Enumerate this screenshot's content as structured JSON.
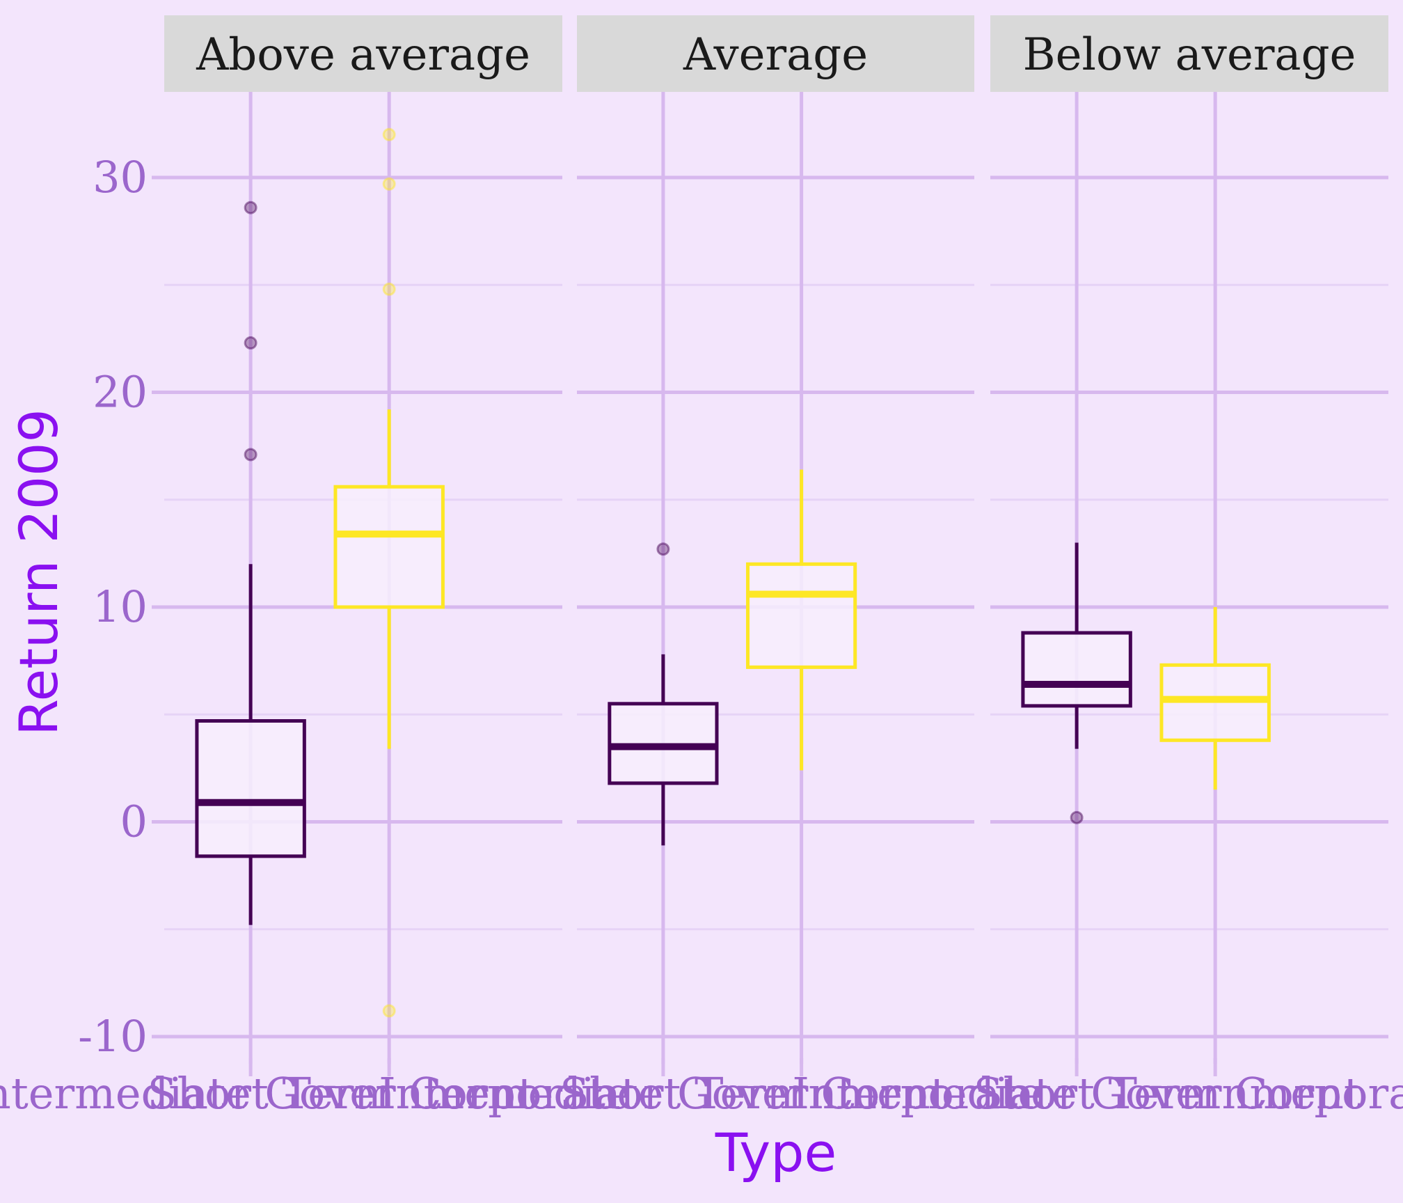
{
  "chart_data": {
    "type": "boxplot",
    "facet_by": "rating",
    "facets": [
      "Above average",
      "Average",
      "Below average"
    ],
    "categories": [
      "Intermediate Government",
      "Short Term Corporate"
    ],
    "xlabel": "Type",
    "ylabel": "Return 2009",
    "ylim": [
      -10.5,
      33
    ],
    "yticks": [
      -10,
      0,
      10,
      20,
      30
    ],
    "grid": true,
    "legend": "none",
    "colors": {
      "Intermediate Government": "#440154",
      "Short Term Corporate": "#fde725",
      "background": "#f3e5fc",
      "grid_major": "#d7b8ee",
      "grid_minor": "#e6d3f6",
      "strip_bg": "#d9d9d9",
      "box_fill": "#f7effd",
      "tick_label": "#9b66cc",
      "axis_title": "#8a10f0"
    },
    "boxes": [
      {
        "facet": "Above average",
        "category": "Intermediate Government",
        "lower_whisker": -4.8,
        "q1": -1.6,
        "median": 0.9,
        "q3": 4.7,
        "upper_whisker": 12.0,
        "outliers": [
          17.1,
          22.3,
          28.6
        ]
      },
      {
        "facet": "Above average",
        "category": "Short Term Corporate",
        "lower_whisker": 3.4,
        "q1": 10.0,
        "median": 13.4,
        "q3": 15.6,
        "upper_whisker": 19.2,
        "outliers": [
          -8.8,
          24.8,
          29.7,
          32.0
        ]
      },
      {
        "facet": "Average",
        "category": "Intermediate Government",
        "lower_whisker": -1.1,
        "q1": 1.8,
        "median": 3.5,
        "q3": 5.5,
        "upper_whisker": 7.8,
        "outliers": [
          12.7
        ]
      },
      {
        "facet": "Average",
        "category": "Short Term Corporate",
        "lower_whisker": 2.4,
        "q1": 7.2,
        "median": 10.6,
        "q3": 12.0,
        "upper_whisker": 16.4,
        "outliers": []
      },
      {
        "facet": "Below average",
        "category": "Intermediate Government",
        "lower_whisker": 3.4,
        "q1": 5.4,
        "median": 6.4,
        "q3": 8.8,
        "upper_whisker": 13.0,
        "outliers": [
          0.2
        ]
      },
      {
        "facet": "Below average",
        "category": "Short Term Corporate",
        "lower_whisker": 1.5,
        "q1": 3.8,
        "median": 5.7,
        "q3": 7.3,
        "upper_whisker": 10.0,
        "outliers": []
      }
    ]
  }
}
